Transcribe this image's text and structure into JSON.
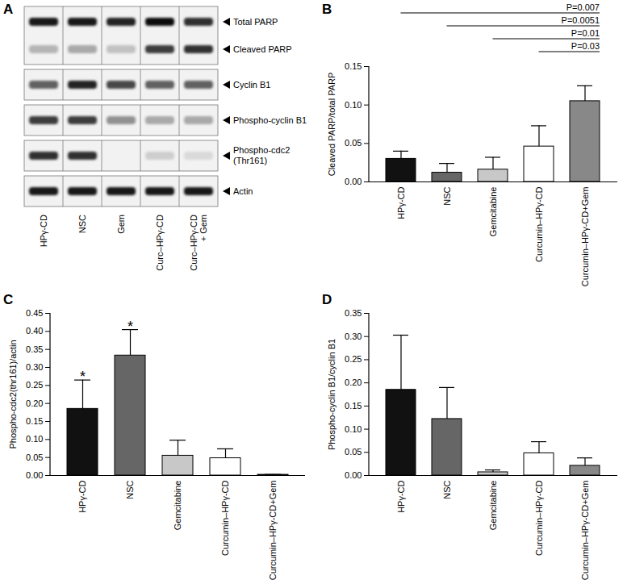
{
  "blot": {
    "panel": "A",
    "lanes": [
      [
        "HPγ-CD"
      ],
      [
        "NSC"
      ],
      [
        "Gem"
      ],
      [
        "Curc–HPγ-CD"
      ],
      [
        "Curc–HPγ-CD",
        "+ Gem"
      ]
    ],
    "boxes": [
      {
        "rows": [
          {
            "label": [
              "Total PARP"
            ],
            "intensity": [
              0.9,
              0.9,
              0.85,
              0.95,
              0.8
            ]
          },
          {
            "label": [
              "Cleaved PARP"
            ],
            "intensity": [
              0.25,
              0.3,
              0.2,
              0.75,
              0.8
            ]
          }
        ]
      },
      {
        "rows": [
          {
            "label": [
              "Cyclin B1"
            ],
            "intensity": [
              0.6,
              0.85,
              0.7,
              0.6,
              0.6
            ]
          }
        ]
      },
      {
        "rows": [
          {
            "label": [
              "Phospho-cyclin B1"
            ],
            "intensity": [
              0.75,
              0.75,
              0.4,
              0.3,
              0.3
            ]
          }
        ]
      },
      {
        "rows": [
          {
            "label": [
              "Phospho-cdc2",
              "(Thr161)"
            ],
            "intensity": [
              0.8,
              0.8,
              0,
              0.15,
              0.1
            ]
          }
        ]
      },
      {
        "rows": [
          {
            "label": [
              "Actin"
            ],
            "intensity": [
              0.9,
              0.9,
              0.9,
              0.9,
              0.9
            ]
          }
        ]
      }
    ]
  },
  "chart_data": [
    {
      "panel": "B",
      "type": "bar",
      "categories": [
        "HPγ-CD",
        "NSC",
        "Gemcitabine",
        "Curcumin–HPγ-CD",
        "Curcumin–HPγ-CD+Gem"
      ],
      "values": [
        0.03,
        0.012,
        0.016,
        0.046,
        0.105
      ],
      "errors": [
        0.01,
        0.012,
        0.016,
        0.027,
        0.02
      ],
      "colors": [
        "#111111",
        "#666666",
        "#c8c8c8",
        "#ffffff",
        "#888888"
      ],
      "y_label": "Cleaved PARP/total PARP",
      "ylim": [
        0,
        0.15
      ],
      "yticks": [
        {
          "value": 0,
          "label": "0.00"
        },
        {
          "value": 0.05,
          "label": "0.05"
        },
        {
          "value": 0.1,
          "label": "0.10"
        },
        {
          "value": 0.15,
          "label": "0.15"
        }
      ],
      "annotations": [
        {
          "from": "HPγ-CD",
          "to": "Curcumin–HPγ-CD+Gem",
          "text": "P=0.007"
        },
        {
          "from": "NSC",
          "to": "Curcumin–HPγ-CD+Gem",
          "text": "P=0.0051"
        },
        {
          "from": "Gemcitabine",
          "to": "Curcumin–HPγ-CD+Gem",
          "text": "P=0.01"
        },
        {
          "from": "Curcumin–HPγ-CD",
          "to": "Curcumin–HPγ-CD+Gem",
          "text": "P=0.03"
        }
      ]
    },
    {
      "panel": "C",
      "type": "bar",
      "categories": [
        "HPγ-CD",
        "NSC",
        "Gemcitabine",
        "Curcumin–HPγ-CD",
        "Curcumin–HPγ-CD+Gem"
      ],
      "values": [
        0.185,
        0.333,
        0.055,
        0.048,
        0.002
      ],
      "errors": [
        0.08,
        0.072,
        0.043,
        0.026,
        0.001
      ],
      "colors": [
        "#111111",
        "#666666",
        "#c8c8c8",
        "#ffffff",
        "#888888"
      ],
      "y_label": "Phospho-cdc2(thr161)/actin",
      "ylim": [
        0,
        0.45
      ],
      "yticks": [
        {
          "value": 0,
          "label": "0.00"
        },
        {
          "value": 0.05,
          "label": "0.05"
        },
        {
          "value": 0.1,
          "label": "0.10"
        },
        {
          "value": 0.15,
          "label": "0.15"
        },
        {
          "value": 0.2,
          "label": "0.20"
        },
        {
          "value": 0.25,
          "label": "0.25"
        },
        {
          "value": 0.3,
          "label": "0.30"
        },
        {
          "value": 0.35,
          "label": "0.35"
        },
        {
          "value": 0.4,
          "label": "0.40"
        },
        {
          "value": 0.45,
          "label": "0.45"
        }
      ],
      "annotations": [
        {
          "category": "HPγ-CD",
          "text": "*"
        },
        {
          "category": "NSC",
          "text": "*"
        }
      ]
    },
    {
      "panel": "D",
      "type": "bar",
      "categories": [
        "HPγ-CD",
        "NSC",
        "Gemcitabine",
        "Curcumin–HPγ-CD",
        "Curcumin–HPγ-CD+Gem"
      ],
      "values": [
        0.185,
        0.122,
        0.007,
        0.048,
        0.021
      ],
      "errors": [
        0.118,
        0.068,
        0.005,
        0.025,
        0.017
      ],
      "colors": [
        "#111111",
        "#666666",
        "#c8c8c8",
        "#ffffff",
        "#888888"
      ],
      "y_label": "Phospho-cyclin B1/cyclin B1",
      "ylim": [
        0,
        0.35
      ],
      "yticks": [
        {
          "value": 0,
          "label": "0.00"
        },
        {
          "value": 0.05,
          "label": "0.05"
        },
        {
          "value": 0.1,
          "label": "0.10"
        },
        {
          "value": 0.15,
          "label": "0.15"
        },
        {
          "value": 0.2,
          "label": "0.20"
        },
        {
          "value": 0.25,
          "label": "0.25"
        },
        {
          "value": 0.3,
          "label": "0.30"
        },
        {
          "value": 0.35,
          "label": "0.35"
        }
      ]
    }
  ]
}
